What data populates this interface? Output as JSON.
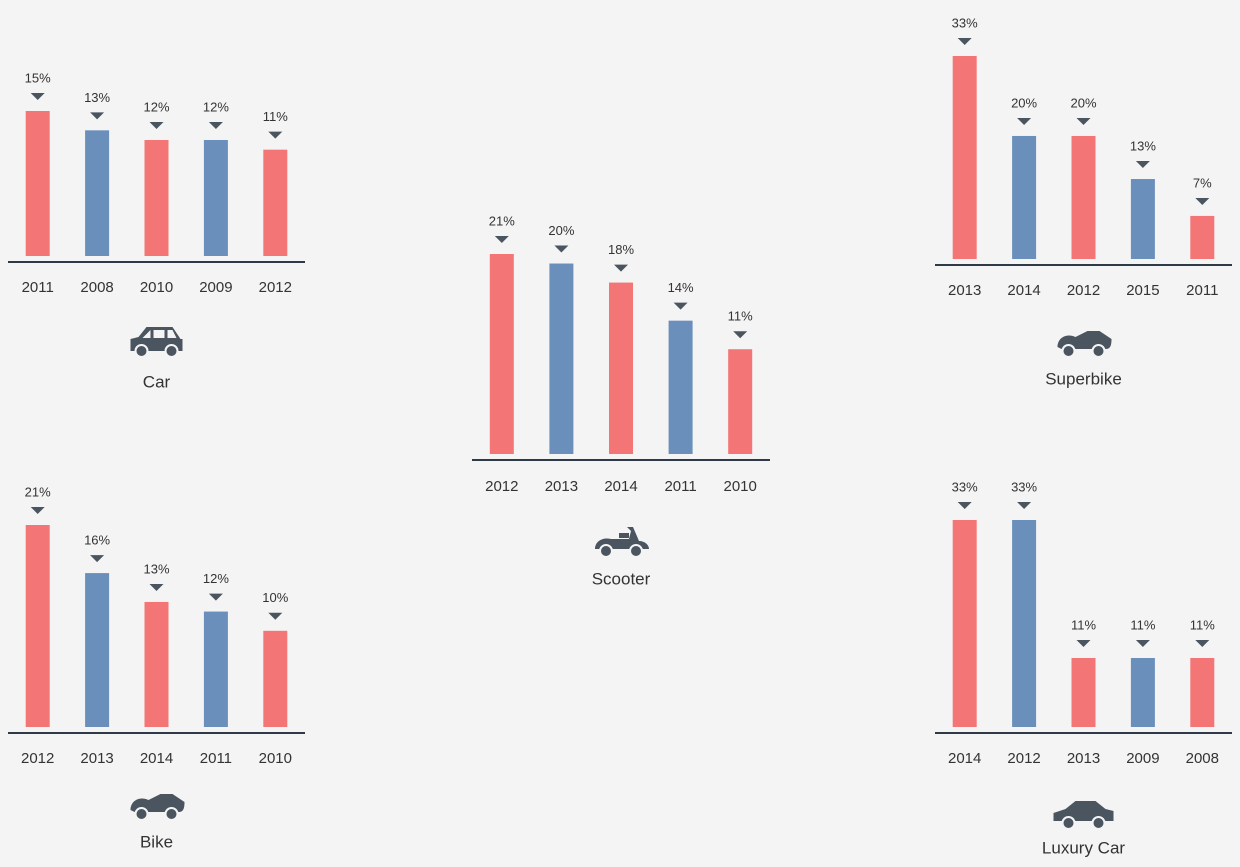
{
  "chart_data": [
    {
      "type": "bar",
      "title": "Car",
      "categories": [
        "2011",
        "2008",
        "2010",
        "2009",
        "2012"
      ],
      "values": [
        15,
        13,
        12,
        12,
        11
      ],
      "value_labels": [
        "15%",
        "13%",
        "12%",
        "12%",
        "11%"
      ],
      "colors": [
        "#f47575",
        "#6a8fbb",
        "#f47575",
        "#6a8fbb",
        "#f47575"
      ]
    },
    {
      "type": "bar",
      "title": "Scooter",
      "categories": [
        "2012",
        "2013",
        "2014",
        "2011",
        "2010"
      ],
      "values": [
        21,
        20,
        18,
        14,
        11
      ],
      "value_labels": [
        "21%",
        "20%",
        "18%",
        "14%",
        "11%"
      ],
      "colors": [
        "#f47575",
        "#6a8fbb",
        "#f47575",
        "#6a8fbb",
        "#f47575"
      ]
    },
    {
      "type": "bar",
      "title": "Superbike",
      "categories": [
        "2013",
        "2014",
        "2012",
        "2015",
        "2011"
      ],
      "values": [
        33,
        20,
        20,
        13,
        7
      ],
      "value_labels": [
        "33%",
        "20%",
        "20%",
        "13%",
        "7%"
      ],
      "colors": [
        "#f47575",
        "#6a8fbb",
        "#f47575",
        "#6a8fbb",
        "#f47575"
      ]
    },
    {
      "type": "bar",
      "title": "Bike",
      "categories": [
        "2012",
        "2013",
        "2014",
        "2011",
        "2010"
      ],
      "values": [
        21,
        16,
        13,
        12,
        10
      ],
      "value_labels": [
        "21%",
        "16%",
        "13%",
        "12%",
        "10%"
      ],
      "colors": [
        "#f47575",
        "#6a8fbb",
        "#f47575",
        "#6a8fbb",
        "#f47575"
      ]
    },
    {
      "type": "bar",
      "title": "Luxury Car",
      "categories": [
        "2014",
        "2012",
        "2013",
        "2009",
        "2008"
      ],
      "values": [
        33,
        33,
        11,
        11,
        11
      ],
      "value_labels": [
        "33%",
        "33%",
        "11%",
        "11%",
        "11%"
      ],
      "colors": [
        "#f47575",
        "#6a8fbb",
        "#f47575",
        "#6a8fbb",
        "#f47575"
      ]
    }
  ]
}
